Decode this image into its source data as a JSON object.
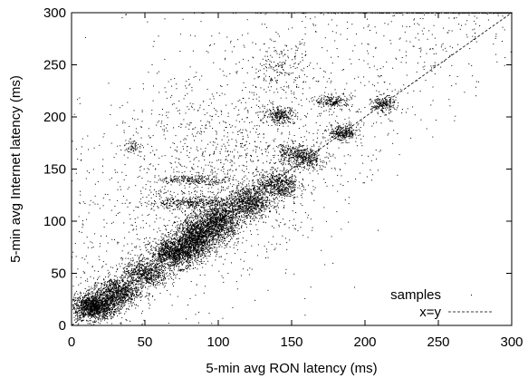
{
  "chart_data": {
    "type": "scatter",
    "title": "",
    "xlabel": "5-min avg RON latency (ms)",
    "ylabel": "5-min avg Internet latency (ms)",
    "xlim": [
      0,
      300
    ],
    "ylim": [
      0,
      300
    ],
    "xticks": [
      0,
      50,
      100,
      150,
      200,
      250,
      300
    ],
    "yticks": [
      0,
      50,
      100,
      150,
      200,
      250,
      300
    ],
    "grid": false,
    "legend": {
      "placement": "bottom-right",
      "entries": [
        {
          "label": "samples",
          "marker": "dot"
        },
        {
          "label": "x=y",
          "marker": "dashed-line"
        }
      ]
    },
    "series": [
      {
        "name": "samples",
        "kind": "points",
        "color": "#000000",
        "clusters": [
          {
            "x": 15,
            "y": 18,
            "sx": 8,
            "sy": 6,
            "n": 1400
          },
          {
            "x": 30,
            "y": 32,
            "sx": 8,
            "sy": 7,
            "n": 900
          },
          {
            "x": 50,
            "y": 50,
            "sx": 8,
            "sy": 7,
            "n": 700
          },
          {
            "x": 70,
            "y": 70,
            "sx": 8,
            "sy": 7,
            "n": 1200
          },
          {
            "x": 85,
            "y": 85,
            "sx": 7,
            "sy": 9,
            "n": 1300
          },
          {
            "x": 100,
            "y": 100,
            "sx": 7,
            "sy": 9,
            "n": 1100
          },
          {
            "x": 120,
            "y": 118,
            "sx": 7,
            "sy": 8,
            "n": 800
          },
          {
            "x": 140,
            "y": 135,
            "sx": 7,
            "sy": 7,
            "n": 600
          },
          {
            "x": 160,
            "y": 160,
            "sx": 6,
            "sy": 5,
            "n": 300
          },
          {
            "x": 185,
            "y": 185,
            "sx": 5,
            "sy": 4,
            "n": 300
          },
          {
            "x": 212,
            "y": 212,
            "sx": 4,
            "sy": 4,
            "n": 220
          },
          {
            "x": 85,
            "y": 140,
            "sx": 13,
            "sy": 2,
            "n": 220
          },
          {
            "x": 80,
            "y": 118,
            "sx": 14,
            "sy": 3,
            "n": 350
          },
          {
            "x": 142,
            "y": 202,
            "sx": 5,
            "sy": 4,
            "n": 260
          },
          {
            "x": 178,
            "y": 215,
            "sx": 6,
            "sy": 3,
            "n": 200
          },
          {
            "x": 142,
            "y": 248,
            "sx": 10,
            "sy": 12,
            "n": 180
          },
          {
            "x": 150,
            "y": 165,
            "sx": 7,
            "sy": 5,
            "n": 220
          },
          {
            "x": 42,
            "y": 172,
            "sx": 3,
            "sy": 3,
            "n": 60
          },
          {
            "x": 100,
            "y": 150,
            "sx": 40,
            "sy": 50,
            "n": 1000
          }
        ],
        "background": {
          "n": 1500,
          "xmin": 0,
          "xmax": 300,
          "ymin": 0,
          "ymax": 300
        }
      },
      {
        "name": "x=y",
        "kind": "line",
        "style": "dashed",
        "color": "#000000",
        "x": [
          0,
          300
        ],
        "y": [
          0,
          300
        ]
      }
    ]
  }
}
